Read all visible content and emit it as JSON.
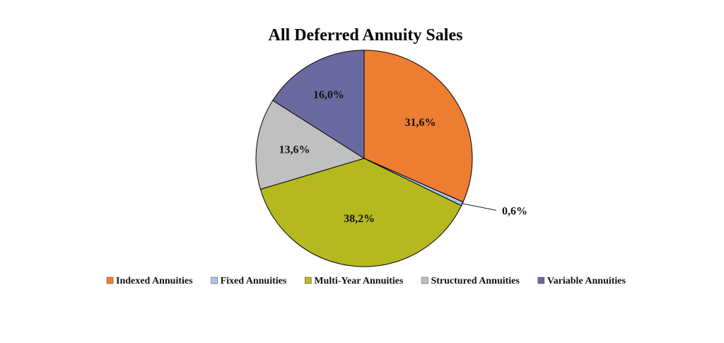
{
  "chart_data": {
    "type": "pie",
    "title": "All Deferred Annuity Sales",
    "categories": [
      "Indexed Annuities",
      "Fixed Annuities",
      "Multi-Year Annuities",
      "Structured Annuities",
      "Variable Annuities"
    ],
    "values": [
      31.6,
      0.6,
      38.2,
      13.6,
      16.0
    ],
    "labels": [
      "31,6%",
      "0,6%",
      "38,2%",
      "13,6%",
      "16,0%"
    ],
    "colors": [
      "#ED7D31",
      "#A9C4E8",
      "#B5B91F",
      "#C0C0C0",
      "#6A6AA0"
    ],
    "start_angle_deg": 0,
    "direction": "clockwise",
    "legend_position": "bottom"
  }
}
